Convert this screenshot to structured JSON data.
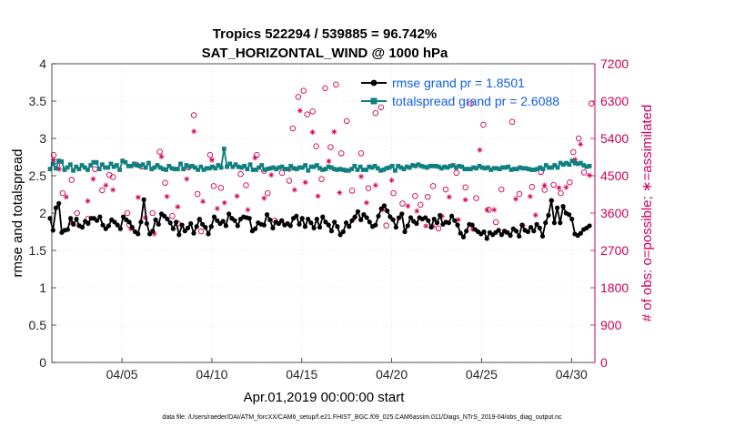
{
  "chart_data": {
    "type": "line",
    "title": "Tropics 522294 / 539885 = 96.742%",
    "subtitle": "SAT_HORIZONTAL_WIND @ 1000 hPa",
    "xlabel": "Apr.01,2019 00:00:00 start",
    "ylabel": "rmse and totalspread",
    "y2label": "# of obs: o=possible; ∗=assimilated",
    "footnote": "data file: /Users/raeder/DAI/ATM_forcXX/CAM6_setup/f.e21.FHIST_BGC.f09_025.CAM6assim.011/Diags_NTrS_2019-04/obs_diag_output.nc",
    "xlim": [
      1.1,
      31.3
    ],
    "ylim": [
      0,
      4
    ],
    "y2lim": [
      0,
      7200
    ],
    "x_ticks": [
      5,
      10,
      15,
      20,
      25,
      30
    ],
    "x_tick_labels": [
      "04/05",
      "04/10",
      "04/15",
      "04/20",
      "04/25",
      "04/30"
    ],
    "y_tick_labels": [
      "0",
      "0.5",
      "1",
      "1.5",
      "2",
      "2.5",
      "3",
      "3.5",
      "4"
    ],
    "y2_tick_labels": [
      "0",
      "900",
      "1800",
      "2700",
      "3600",
      "4500",
      "5400",
      "6300",
      "7200"
    ],
    "legend_position": "top-right",
    "colors": {
      "rmse": "#000000",
      "spread": "#0f7f7f",
      "obs": "#d0005a",
      "legend_text": "#1060e0"
    },
    "series": [
      {
        "name": "rmse grand pr = 1.8501",
        "key": "rmse",
        "values": [
          1.93,
          1.77,
          2.07,
          2.13,
          1.74,
          1.77,
          1.78,
          1.93,
          1.85,
          1.92,
          1.83,
          1.81,
          1.89,
          1.86,
          1.93,
          1.93,
          1.9,
          1.95,
          1.84,
          1.79,
          1.83,
          1.91,
          1.88,
          1.84,
          1.79,
          1.95,
          1.91,
          1.88,
          1.81,
          1.75,
          1.72,
          1.88,
          2.18,
          1.86,
          1.72,
          1.76,
          1.91,
          1.85,
          1.99,
          1.96,
          1.92,
          1.87,
          1.79,
          1.88,
          1.71,
          1.84,
          1.76,
          1.8,
          1.86,
          1.73,
          1.82,
          1.92,
          1.85,
          1.81,
          1.72,
          1.82,
          1.95,
          1.9,
          1.86,
          1.89,
          1.83,
          1.99,
          1.93,
          1.9,
          1.83,
          1.92,
          1.95,
          1.94,
          1.93,
          1.76,
          1.79,
          1.87,
          1.85,
          1.84,
          1.98,
          1.91,
          1.8,
          1.88,
          1.86,
          1.9,
          1.84,
          1.86,
          1.83,
          1.93,
          1.96,
          1.85,
          1.93,
          1.82,
          1.92,
          1.87,
          1.8,
          1.92,
          1.81,
          1.95,
          1.88,
          1.84,
          1.76,
          1.88,
          1.82,
          1.71,
          1.75,
          1.87,
          1.82,
          1.9,
          1.95,
          2.02,
          1.91,
          1.98,
          1.94,
          1.88,
          1.82,
          1.84,
          1.96,
          2.06,
          2.1,
          2.03,
          1.95,
          1.91,
          1.81,
          1.94,
          1.99,
          1.75,
          1.83,
          1.94,
          1.89,
          1.86,
          1.94,
          1.92,
          1.94,
          1.9,
          1.81,
          1.92,
          1.87,
          1.97,
          1.85,
          1.88,
          1.87,
          1.96,
          1.9,
          1.84,
          1.73,
          1.68,
          1.76,
          1.85,
          1.84,
          1.78,
          1.75,
          1.72,
          1.75,
          1.66,
          1.74,
          1.71,
          1.74,
          1.77,
          1.71,
          1.76,
          1.74,
          1.7,
          1.79,
          1.76,
          1.69,
          1.84,
          1.77,
          1.75,
          1.81,
          1.76,
          1.85,
          1.8,
          1.69,
          1.87,
          1.97,
          2.17,
          1.87,
          2.07,
          1.87,
          2.09,
          2.0,
          1.98,
          1.92,
          1.72,
          1.7,
          1.73,
          1.78,
          1.8,
          1.83
        ]
      },
      {
        "name": "totalspread grand pr = 2.6088",
        "key": "spread",
        "values": [
          2.59,
          2.66,
          2.6,
          2.7,
          2.69,
          2.58,
          2.61,
          2.65,
          2.57,
          2.62,
          2.59,
          2.64,
          2.61,
          2.58,
          2.64,
          2.68,
          2.68,
          2.59,
          2.65,
          2.61,
          2.61,
          2.66,
          2.62,
          2.64,
          2.58,
          2.7,
          2.68,
          2.63,
          2.63,
          2.66,
          2.64,
          2.63,
          2.65,
          2.61,
          2.67,
          2.59,
          2.61,
          2.64,
          2.61,
          2.59,
          2.58,
          2.63,
          2.6,
          2.59,
          2.59,
          2.66,
          2.59,
          2.64,
          2.62,
          2.63,
          2.61,
          2.58,
          2.62,
          2.58,
          2.6,
          2.6,
          2.62,
          2.6,
          2.64,
          2.61,
          2.86,
          2.62,
          2.66,
          2.62,
          2.65,
          2.62,
          2.61,
          2.63,
          2.59,
          2.65,
          2.58,
          2.58,
          2.61,
          2.64,
          2.58,
          2.59,
          2.6,
          2.61,
          2.59,
          2.61,
          2.62,
          2.59,
          2.59,
          2.63,
          2.6,
          2.59,
          2.61,
          2.61,
          2.64,
          2.57,
          2.62,
          2.62,
          2.64,
          2.6,
          2.58,
          2.59,
          2.62,
          2.61,
          2.59,
          2.58,
          2.59,
          2.58,
          2.57,
          2.57,
          2.59,
          2.63,
          2.58,
          2.62,
          2.58,
          2.58,
          2.62,
          2.61,
          2.63,
          2.6,
          2.57,
          2.58,
          2.6,
          2.61,
          2.63,
          2.57,
          2.63,
          2.61,
          2.59,
          2.62,
          2.61,
          2.64,
          2.63,
          2.65,
          2.63,
          2.62,
          2.61,
          2.63,
          2.63,
          2.63,
          2.62,
          2.6,
          2.62,
          2.61,
          2.63,
          2.64,
          2.61,
          2.63,
          2.62,
          2.59,
          2.59,
          2.59,
          2.61,
          2.6,
          2.63,
          2.61,
          2.6,
          2.61,
          2.58,
          2.6,
          2.6,
          2.59,
          2.61,
          2.61,
          2.62,
          2.58,
          2.59,
          2.59,
          2.61,
          2.6,
          2.6,
          2.59,
          2.58,
          2.58,
          2.59,
          2.61,
          2.59,
          2.64,
          2.61,
          2.61,
          2.64,
          2.61,
          2.67,
          2.65,
          2.67,
          2.65,
          2.7,
          2.67,
          2.66,
          2.67,
          2.64,
          2.62,
          2.63
        ]
      }
    ],
    "obs_possible": [
      [
        1.2,
        5000
      ],
      [
        1.4,
        4750
      ],
      [
        1.7,
        4080
      ],
      [
        2.2,
        4400
      ],
      [
        2.5,
        3600
      ],
      [
        3.1,
        3460
      ],
      [
        3.5,
        4660
      ],
      [
        3.9,
        4150
      ],
      [
        4.3,
        4520
      ],
      [
        4.5,
        4470
      ],
      [
        5.3,
        3600
      ],
      [
        5.4,
        3320
      ],
      [
        5.8,
        4770
      ],
      [
        6.1,
        4720
      ],
      [
        6.7,
        3600
      ],
      [
        7.1,
        5080
      ],
      [
        7.4,
        4330
      ],
      [
        7.8,
        3530
      ],
      [
        8.1,
        3350
      ],
      [
        8.7,
        4700
      ],
      [
        9.0,
        5960
      ],
      [
        9.2,
        4060
      ],
      [
        9.4,
        3160
      ],
      [
        9.9,
        5000
      ],
      [
        10.1,
        4250
      ],
      [
        10.5,
        4210
      ],
      [
        11.6,
        4540
      ],
      [
        11.9,
        4270
      ],
      [
        12.5,
        5000
      ],
      [
        12.9,
        4620
      ],
      [
        13.1,
        4080
      ],
      [
        13.5,
        3420
      ],
      [
        13.9,
        4570
      ],
      [
        14.3,
        4380
      ],
      [
        14.5,
        5640
      ],
      [
        14.8,
        6400
      ],
      [
        15.1,
        6550
      ],
      [
        15.3,
        5980
      ],
      [
        15.6,
        6050
      ],
      [
        15.8,
        5210
      ],
      [
        16.1,
        4420
      ],
      [
        16.3,
        6610
      ],
      [
        16.6,
        5190
      ],
      [
        16.9,
        6700
      ],
      [
        17.2,
        5040
      ],
      [
        17.5,
        5820
      ],
      [
        17.8,
        4140
      ],
      [
        18.3,
        5040
      ],
      [
        18.7,
        4200
      ],
      [
        19.1,
        6010
      ],
      [
        19.4,
        6150
      ],
      [
        19.7,
        3300
      ],
      [
        20.1,
        4080
      ],
      [
        20.6,
        3830
      ],
      [
        21.3,
        4010
      ],
      [
        21.6,
        3800
      ],
      [
        22.0,
        3990
      ],
      [
        22.3,
        4250
      ],
      [
        22.6,
        3230
      ],
      [
        23.0,
        4170
      ],
      [
        23.6,
        4570
      ],
      [
        24.1,
        4220
      ],
      [
        24.4,
        6240
      ],
      [
        24.7,
        3960
      ],
      [
        25.1,
        5730
      ],
      [
        25.4,
        3680
      ],
      [
        25.8,
        3380
      ],
      [
        26.1,
        4170
      ],
      [
        26.7,
        5800
      ],
      [
        27.1,
        4060
      ],
      [
        27.8,
        4230
      ],
      [
        28.3,
        4590
      ],
      [
        28.5,
        4160
      ],
      [
        29.0,
        4280
      ],
      [
        29.4,
        4080
      ],
      [
        29.9,
        4340
      ],
      [
        30.1,
        5070
      ],
      [
        30.4,
        5400
      ],
      [
        30.7,
        4580
      ],
      [
        31.1,
        6240
      ]
    ],
    "obs_assimilated": [
      [
        1.2,
        4880
      ],
      [
        1.5,
        4660
      ],
      [
        1.9,
        3990
      ],
      [
        2.2,
        3360
      ],
      [
        2.6,
        3300
      ],
      [
        3.1,
        3890
      ],
      [
        3.4,
        4420
      ],
      [
        4.1,
        4270
      ],
      [
        4.5,
        4160
      ],
      [
        5.5,
        3220
      ],
      [
        5.9,
        3980
      ],
      [
        6.3,
        3490
      ],
      [
        6.8,
        3100
      ],
      [
        7.2,
        4960
      ],
      [
        7.5,
        4000
      ],
      [
        8.1,
        3750
      ],
      [
        8.6,
        4420
      ],
      [
        9.0,
        5570
      ],
      [
        9.3,
        3440
      ],
      [
        9.5,
        3880
      ],
      [
        10.0,
        4880
      ],
      [
        10.3,
        3710
      ],
      [
        10.7,
        3850
      ],
      [
        11.4,
        4010
      ],
      [
        12.0,
        3680
      ],
      [
        12.4,
        4930
      ],
      [
        12.9,
        3960
      ],
      [
        13.3,
        4520
      ],
      [
        13.9,
        3400
      ],
      [
        14.3,
        4650
      ],
      [
        14.6,
        4160
      ],
      [
        14.9,
        6070
      ],
      [
        15.2,
        4340
      ],
      [
        15.6,
        5550
      ],
      [
        15.9,
        4010
      ],
      [
        16.5,
        4850
      ],
      [
        16.8,
        5560
      ],
      [
        17.1,
        4090
      ],
      [
        17.4,
        4640
      ],
      [
        17.9,
        3460
      ],
      [
        18.3,
        4480
      ],
      [
        18.6,
        3850
      ],
      [
        19.1,
        4270
      ],
      [
        19.5,
        3680
      ],
      [
        20.0,
        4390
      ],
      [
        20.4,
        3480
      ],
      [
        20.9,
        3770
      ],
      [
        21.4,
        3650
      ],
      [
        21.9,
        3290
      ],
      [
        22.3,
        3280
      ],
      [
        22.8,
        3520
      ],
      [
        23.2,
        3990
      ],
      [
        23.7,
        3440
      ],
      [
        24.1,
        3920
      ],
      [
        24.5,
        3210
      ],
      [
        24.9,
        5120
      ],
      [
        25.3,
        3680
      ],
      [
        25.7,
        3680
      ],
      [
        26.3,
        3140
      ],
      [
        26.9,
        3940
      ],
      [
        27.3,
        3300
      ],
      [
        27.7,
        4000
      ],
      [
        28.0,
        3550
      ],
      [
        28.5,
        4270
      ],
      [
        28.9,
        3900
      ],
      [
        29.3,
        4210
      ],
      [
        29.7,
        4220
      ],
      [
        30.2,
        4890
      ],
      [
        30.5,
        5260
      ],
      [
        31.0,
        4510
      ]
    ]
  }
}
